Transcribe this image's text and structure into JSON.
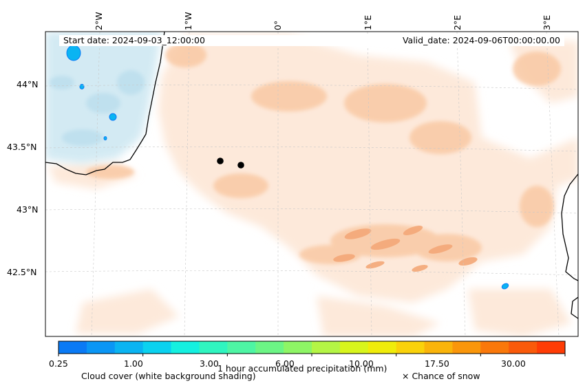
{
  "header": {
    "start_date": "Start date: 2024-09-03_12:00:00",
    "valid_date": "Valid_date: 2024-09-06T00:00:00.00"
  },
  "longitude_labels": [
    "2°W",
    "1°W",
    "0°",
    "1°E",
    "2°E",
    "3°E"
  ],
  "latitude_labels": [
    "44°N",
    "43.5°N",
    "43°N",
    "42.5°N"
  ],
  "colorbar": {
    "tick_labels": [
      "0.25",
      "1.00",
      "3.00",
      "6.00",
      "10.00",
      "17.50",
      "30.00"
    ],
    "title": "1 hour accumulated precipitation (mm)",
    "colors": [
      "#0a7af5",
      "#0a96f5",
      "#0ab4f2",
      "#0ad2f0",
      "#14f0e0",
      "#2ff5c0",
      "#4ef5a4",
      "#6cf585",
      "#8ef565",
      "#b4f545",
      "#d8f51c",
      "#f0ec0a",
      "#fad20a",
      "#fab40a",
      "#fa960a",
      "#fa780a",
      "#fa5a0a",
      "#ff3c05"
    ]
  },
  "legend": {
    "cloud_cover": "Cloud cover (white background shading)",
    "snow": "× Chance of snow"
  },
  "colors": {
    "precip_light": "#fde9da",
    "precip_medium": "#f9c9a4",
    "precip_strong": "#f4a878",
    "cloud_blue": "#cfe8f2",
    "coastline": "#000000",
    "grid": "#c8c8c8"
  }
}
